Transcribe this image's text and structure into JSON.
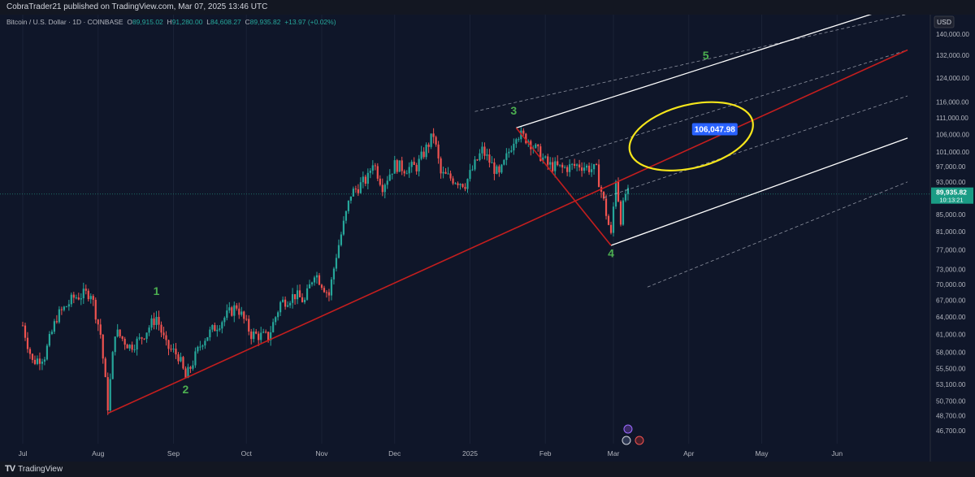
{
  "header": {
    "publisher": "CobraTrader21 published on TradingView.com, Mar 07, 2025 13:46 UTC"
  },
  "legend": {
    "symbol": "Bitcoin / U.S. Dollar · 1D · COINBASE",
    "open_label": "O",
    "open": "89,915.02",
    "high_label": "H",
    "high": "91,280.00",
    "low_label": "L",
    "low": "84,608.27",
    "close_label": "C",
    "close": "89,935.82",
    "change": "+13.97 (+0.02%)"
  },
  "price_axis": {
    "currency": "USD",
    "current_price": "89,935.82",
    "countdown": "10:13:21"
  },
  "footer": {
    "brand": "TradingView",
    "logo": "TV"
  },
  "colors": {
    "background": "#0f1629",
    "up": "#26a69a",
    "down": "#ef5350",
    "trendline": "#c41e1e",
    "channel": "#ffffff",
    "wave_label": "#4caf50",
    "highlight": "#f5e51b",
    "callout": "#2962ff"
  },
  "chart_data": {
    "type": "candlestick",
    "title": "Bitcoin / U.S. Dollar · 1D · COINBASE",
    "y_scale": "log",
    "ylim": [
      45000,
      148000
    ],
    "xlim": [
      "2024-07-01",
      "2025-06-30"
    ],
    "x_ticks": [
      {
        "date": "2024-07-01",
        "label": "Jul"
      },
      {
        "date": "2024-08-01",
        "label": "Aug"
      },
      {
        "date": "2024-09-01",
        "label": "Sep"
      },
      {
        "date": "2024-10-01",
        "label": "Oct"
      },
      {
        "date": "2024-11-01",
        "label": "Nov"
      },
      {
        "date": "2024-12-01",
        "label": "Dec"
      },
      {
        "date": "2025-01-01",
        "label": "2025"
      },
      {
        "date": "2025-02-01",
        "label": "Feb"
      },
      {
        "date": "2025-03-01",
        "label": "Mar"
      },
      {
        "date": "2025-04-01",
        "label": "Apr"
      },
      {
        "date": "2025-05-01",
        "label": "May"
      },
      {
        "date": "2025-06-01",
        "label": "Jun"
      }
    ],
    "y_ticks": [
      {
        "value": 140000,
        "label": "140,000.00"
      },
      {
        "value": 132000,
        "label": "132,000.00"
      },
      {
        "value": 124000,
        "label": "124,000.00"
      },
      {
        "value": 116000,
        "label": "116,000.00"
      },
      {
        "value": 111000,
        "label": "111,000.00"
      },
      {
        "value": 106000,
        "label": "106,000.00"
      },
      {
        "value": 101000,
        "label": "101,000.00"
      },
      {
        "value": 97000,
        "label": "97,000.00"
      },
      {
        "value": 93000,
        "label": "93,000.00"
      },
      {
        "value": 85000,
        "label": "85,000.00"
      },
      {
        "value": 81000,
        "label": "81,000.00"
      },
      {
        "value": 77000,
        "label": "77,000.00"
      },
      {
        "value": 73000,
        "label": "73,000.00"
      },
      {
        "value": 70000,
        "label": "70,000.00"
      },
      {
        "value": 67000,
        "label": "67,000.00"
      },
      {
        "value": 64000,
        "label": "64,000.00"
      },
      {
        "value": 61000,
        "label": "61,000.00"
      },
      {
        "value": 58000,
        "label": "58,000.00"
      },
      {
        "value": 55500,
        "label": "55,500.00"
      },
      {
        "value": 53100,
        "label": "53,100.00"
      },
      {
        "value": 50700,
        "label": "50,700.00"
      },
      {
        "value": 48700,
        "label": "48,700.00"
      },
      {
        "value": 46700,
        "label": "46,700.00"
      }
    ],
    "price_path": [
      [
        "2024-07-01",
        62500
      ],
      [
        "2024-07-05",
        56500
      ],
      [
        "2024-07-10",
        57500
      ],
      [
        "2024-07-15",
        64000
      ],
      [
        "2024-07-22",
        67500
      ],
      [
        "2024-07-29",
        68500
      ],
      [
        "2024-08-02",
        61000
      ],
      [
        "2024-08-05",
        50000
      ],
      [
        "2024-08-08",
        61500
      ],
      [
        "2024-08-14",
        59000
      ],
      [
        "2024-08-18",
        60000
      ],
      [
        "2024-08-25",
        64000
      ],
      [
        "2024-08-29",
        59000
      ],
      [
        "2024-09-03",
        57500
      ],
      [
        "2024-09-06",
        54000
      ],
      [
        "2024-09-13",
        60000
      ],
      [
        "2024-09-20",
        63000
      ],
      [
        "2024-09-27",
        66000
      ],
      [
        "2024-10-03",
        61000
      ],
      [
        "2024-10-10",
        60500
      ],
      [
        "2024-10-15",
        66500
      ],
      [
        "2024-10-21",
        68000
      ],
      [
        "2024-10-25",
        66800
      ],
      [
        "2024-10-29",
        72500
      ],
      [
        "2024-11-04",
        68000
      ],
      [
        "2024-11-07",
        76000
      ],
      [
        "2024-11-13",
        90000
      ],
      [
        "2024-11-20",
        94000
      ],
      [
        "2024-11-22",
        98500
      ],
      [
        "2024-11-26",
        92000
      ],
      [
        "2024-12-01",
        97500
      ],
      [
        "2024-12-05",
        96500
      ],
      [
        "2024-12-10",
        97000
      ],
      [
        "2024-12-17",
        106000
      ],
      [
        "2024-12-20",
        95000
      ],
      [
        "2024-12-30",
        92500
      ],
      [
        "2025-01-06",
        101500
      ],
      [
        "2025-01-13",
        94500
      ],
      [
        "2025-01-20",
        106500
      ],
      [
        "2025-01-25",
        104500
      ],
      [
        "2025-02-02",
        97500
      ],
      [
        "2025-02-08",
        96500
      ],
      [
        "2025-02-15",
        97500
      ],
      [
        "2025-02-22",
        96000
      ],
      [
        "2025-02-25",
        88000
      ],
      [
        "2025-02-28",
        80000
      ],
      [
        "2025-03-02",
        94000
      ],
      [
        "2025-03-04",
        84000
      ],
      [
        "2025-03-06",
        90000
      ],
      [
        "2025-03-07",
        89935.82
      ]
    ],
    "annotations": {
      "wave_labels": [
        {
          "label": "1",
          "date": "2024-08-25",
          "price": 68000
        },
        {
          "label": "2",
          "date": "2024-09-06",
          "price": 51800
        },
        {
          "label": "3",
          "date": "2025-01-19",
          "price": 112000
        },
        {
          "label": "4",
          "date": "2025-02-28",
          "price": 75500
        },
        {
          "label": "5",
          "date": "2025-04-08",
          "price": 130500
        }
      ],
      "trendline": {
        "from": [
          "2024-08-05",
          49000
        ],
        "to": [
          "2025-06-30",
          134000
        ]
      },
      "drop_line": [
        [
          "2025-01-20",
          108000
        ],
        [
          "2025-02-28",
          78000
        ]
      ],
      "channel_upper": {
        "from": [
          "2025-01-20",
          108000
        ],
        "to": [
          "2025-06-20",
          149500
        ]
      },
      "channel_lower": {
        "from": [
          "2025-02-28",
          78000
        ],
        "to": [
          "2025-06-30",
          105000
        ]
      },
      "channel_dashed": [
        {
          "from": [
            "2025-01-03",
            113000
          ],
          "to": [
            "2025-06-30",
            148000
          ]
        },
        {
          "from": [
            "2025-02-07",
            99000
          ],
          "to": [
            "2025-06-30",
            134000
          ]
        },
        {
          "from": [
            "2025-02-25",
            89000
          ],
          "to": [
            "2025-06-30",
            118000
          ]
        },
        {
          "from": [
            "2025-03-15",
            69500
          ],
          "to": [
            "2025-06-30",
            93000
          ]
        }
      ],
      "target_price": {
        "label": "106,047.98",
        "value": 106047.98,
        "date": "2025-03-30"
      },
      "highlight_ellipse": {
        "center": [
          "2025-04-02",
          105500
        ],
        "rx_days": 26,
        "ry_price_span": [
          97000,
          115500
        ]
      },
      "current_price_line": 89935.82
    }
  }
}
